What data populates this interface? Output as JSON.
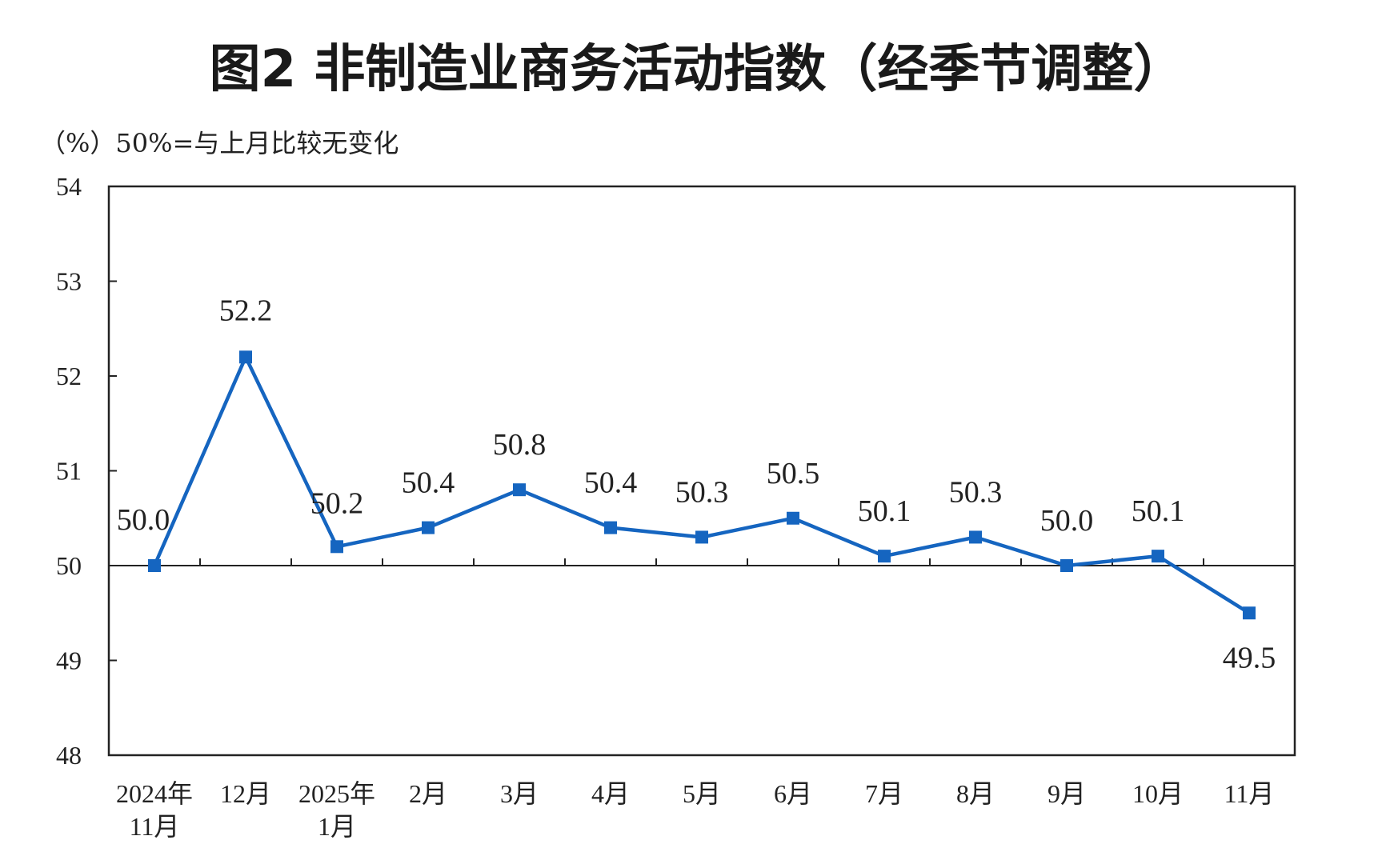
{
  "chart_data": {
    "type": "line",
    "title": "图2  非制造业商务活动指数（经季节调整）",
    "unit_note": "（%）50%=与上月比较无变化",
    "categories": [
      [
        "2024年",
        "11月"
      ],
      [
        "12月"
      ],
      [
        "2025年",
        "1月"
      ],
      [
        "2月"
      ],
      [
        "3月"
      ],
      [
        "4月"
      ],
      [
        "5月"
      ],
      [
        "6月"
      ],
      [
        "7月"
      ],
      [
        "8月"
      ],
      [
        "9月"
      ],
      [
        "10月"
      ],
      [
        "11月"
      ]
    ],
    "series": [
      {
        "values": [
          50.0,
          52.2,
          50.2,
          50.4,
          50.8,
          50.4,
          50.3,
          50.5,
          50.1,
          50.3,
          50.0,
          50.1,
          49.5
        ],
        "labels": [
          "50.0",
          "52.2",
          "50.2",
          "50.4",
          "50.8",
          "50.4",
          "50.3",
          "50.5",
          "50.1",
          "50.3",
          "50.0",
          "50.1",
          "49.5"
        ],
        "color": "#1565c0"
      }
    ],
    "ylim": [
      48,
      54
    ],
    "yticks": [
      "48",
      "49",
      "50",
      "51",
      "52",
      "53",
      "54"
    ],
    "reference_line": 50,
    "grid": false,
    "legend": "none"
  }
}
